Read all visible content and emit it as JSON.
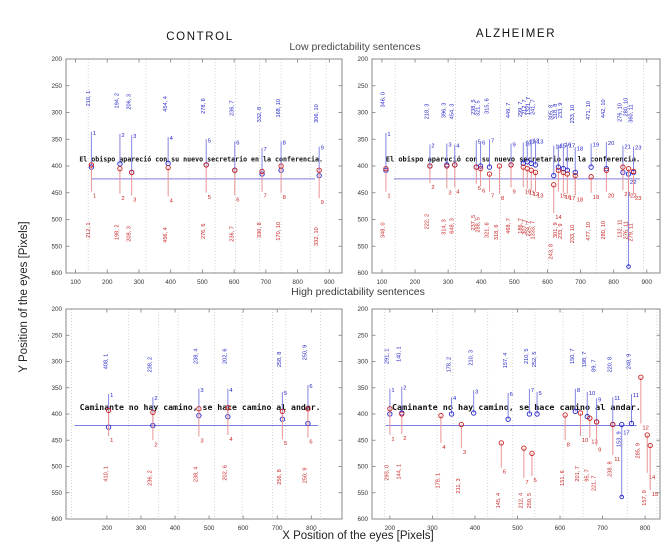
{
  "figure": {
    "titles": {
      "left_col": "CONTROL",
      "right_col": "ALZHEIMER",
      "top_row": "Low predictability sentences",
      "bottom_row": "High predictability sentences",
      "x_axis": "X Position of the eyes [Pixels]",
      "y_axis": "Y Position of the eyes [Pixels]"
    },
    "colors": {
      "blue": "#2323c8",
      "blue_stem": "#8585e2",
      "red": "#c82323",
      "red_stem": "#e89494",
      "baseline": "#7d7de0",
      "grid": "#c9c9c9",
      "axis": "#8a8a8a",
      "tick_text": "#333333",
      "sentence": "#111111"
    }
  },
  "chart_data": [
    {
      "id": "control-low",
      "type": "stem",
      "group": "CONTROL",
      "condition": "Low predictability sentences",
      "xlim": [
        70,
        940
      ],
      "ylim": [
        200,
        600
      ],
      "xticks": [
        100,
        200,
        300,
        400,
        500,
        600,
        700,
        800,
        900
      ],
      "yticks": [
        200,
        250,
        300,
        350,
        400,
        450,
        500,
        550,
        600
      ],
      "grid_x": [
        140,
        322,
        458,
        540,
        604,
        680,
        748,
        840,
        890
      ],
      "sentence": {
        "text": "El obispo apareció con su nuevo secretario en la conferencia.",
        "y": 392,
        "x0": 112,
        "x1": 880
      },
      "baseline": {
        "y": 424,
        "x0": 150,
        "x1": 855
      },
      "fixations": [
        {
          "x": 150,
          "n": "1",
          "b": {
            "y0": 402,
            "y1": 336,
            "label": "210, 1"
          },
          "r": {
            "y0": 398,
            "y1": 448,
            "label": "212, 1"
          }
        },
        {
          "x": 240,
          "n": "2",
          "b": {
            "y0": 396,
            "y1": 340,
            "label": "194, 2"
          },
          "r": {
            "y0": 405,
            "y1": 452,
            "label": "198, 2"
          }
        },
        {
          "x": 277,
          "n": "3",
          "b": {
            "y0": 412,
            "y1": 342,
            "label": "206, 3"
          },
          "r": {
            "y0": 412,
            "y1": 455,
            "label": "208, 3"
          }
        },
        {
          "x": 392,
          "n": "4",
          "b": {
            "y0": 395,
            "y1": 346,
            "label": "454, 4"
          },
          "r": {
            "y0": 403,
            "y1": 457,
            "label": "456, 4"
          }
        },
        {
          "x": 512,
          "n": "5",
          "b": {
            "y0": 398,
            "y1": 350,
            "label": "278, 6"
          },
          "r": {
            "y0": 398,
            "y1": 450,
            "label": "276, 6"
          }
        },
        {
          "x": 602,
          "n": "6",
          "b": {
            "y0": 408,
            "y1": 354,
            "label": "236, 7"
          },
          "r": {
            "y0": 408,
            "y1": 455,
            "label": "236, 7"
          }
        },
        {
          "x": 688,
          "n": "7",
          "b": {
            "y0": 415,
            "y1": 366,
            "label": "332, 8"
          },
          "r": {
            "y0": 410,
            "y1": 448,
            "label": "330, 8"
          }
        },
        {
          "x": 748,
          "n": "8",
          "b": {
            "y0": 408,
            "y1": 354,
            "label": "168, 10"
          },
          "r": {
            "y0": 400,
            "y1": 450,
            "label": "170, 10"
          }
        },
        {
          "x": 868,
          "n": "9",
          "b": {
            "y0": 418,
            "y1": 364,
            "label": "306, 10"
          },
          "r": {
            "y0": 408,
            "y1": 460,
            "label": "332, 10"
          }
        }
      ]
    },
    {
      "id": "alzheimer-low",
      "type": "stem",
      "group": "ALZHEIMER",
      "condition": "Low predictability sentences",
      "xlim": [
        70,
        940
      ],
      "ylim": [
        200,
        600
      ],
      "xticks": [
        100,
        200,
        300,
        400,
        500,
        600,
        700,
        800,
        900
      ],
      "yticks": [
        200,
        250,
        300,
        350,
        400,
        450,
        500,
        550,
        600
      ],
      "grid_x": [
        140,
        322,
        458,
        540,
        604,
        680,
        748,
        840,
        890
      ],
      "sentence": {
        "text": "El obispo apareció con su nuevo secretario en la conferencia.",
        "y": 392,
        "x0": 112,
        "x1": 880
      },
      "baseline": {
        "y": 424,
        "x0": 136,
        "x1": 880
      },
      "fixations": [
        {
          "x": 112,
          "n": "1",
          "b": {
            "y0": 408,
            "y1": 338,
            "label": "346, 0"
          },
          "r": {
            "y0": 405,
            "y1": 448,
            "label": "348, 0"
          }
        },
        {
          "x": 245,
          "n": "2",
          "b": {
            "y0": 400,
            "y1": 360,
            "label": "218, 3"
          },
          "r": {
            "y0": 400,
            "y1": 432,
            "label": "222, 2"
          }
        },
        {
          "x": 296,
          "n": "3",
          "b": {
            "y0": 398,
            "y1": 358,
            "label": "396, 3"
          },
          "r": {
            "y0": 400,
            "y1": 442,
            "label": "314, 3"
          }
        },
        {
          "x": 320,
          "n": "4",
          "b": {
            "y0": 398,
            "y1": 360,
            "label": "454, 3"
          },
          "r": {
            "y0": 398,
            "y1": 440,
            "label": "648, 3"
          }
        },
        {
          "x": 385,
          "n": "5",
          "b": {
            "y0": 402,
            "y1": 352,
            "label": "238, 5"
          },
          "r": {
            "y0": 402,
            "y1": 434,
            "label": "237, 5"
          }
        },
        {
          "x": 398,
          "n": "6",
          "b": {
            "y0": 400,
            "y1": 354,
            "label": "321, 5"
          },
          "r": {
            "y0": 405,
            "y1": 438,
            "label": "288, 5"
          }
        },
        {
          "x": 425,
          "n": "7",
          "b": {
            "y0": 402,
            "y1": 350,
            "label": "315, 6"
          },
          "r": {
            "y0": 415,
            "y1": 448,
            "label": "321, 6"
          }
        },
        {
          "x": 455,
          "n": "8",
          "r": {
            "y0": 400,
            "y1": 452,
            "label": "318, 6"
          }
        },
        {
          "x": 490,
          "n": "9",
          "b": {
            "y0": 398,
            "y1": 358,
            "label": "449, 7"
          },
          "r": {
            "y0": 398,
            "y1": 440,
            "label": "468, 7"
          }
        },
        {
          "x": 527,
          "n": "10",
          "b": {
            "y0": 395,
            "y1": 356,
            "label": "299, 7"
          },
          "r": {
            "y0": 402,
            "y1": 440,
            "label": "186, 7"
          }
        },
        {
          "x": 539,
          "n": "11",
          "b": {
            "y0": 392,
            "y1": 352,
            "label": "212, 7"
          },
          "r": {
            "y0": 405,
            "y1": 442,
            "label": "307, 7"
          }
        },
        {
          "x": 551,
          "n": "12",
          "b": {
            "y0": 395,
            "y1": 350,
            "label": "1321, 7"
          },
          "r": {
            "y0": 408,
            "y1": 445,
            "label": "224, 7"
          }
        },
        {
          "x": 564,
          "n": "13",
          "b": {
            "y0": 398,
            "y1": 352,
            "label": "241, 7"
          },
          "r": {
            "y0": 412,
            "y1": 448,
            "label": "1333, 7"
          }
        },
        {
          "x": 619,
          "n": "14",
          "b": {
            "y0": 418,
            "y1": 362,
            "label": "305, 8"
          },
          "r": {
            "y0": 435,
            "y1": 488,
            "label": "243, 8"
          }
        },
        {
          "x": 633,
          "n": "15",
          "b": {
            "y0": 402,
            "y1": 360,
            "label": "318, 8"
          },
          "r": {
            "y0": 408,
            "y1": 448,
            "label": "301, 9"
          }
        },
        {
          "x": 648,
          "n": "16",
          "b": {
            "y0": 405,
            "y1": 358,
            "label": "233, 9"
          },
          "r": {
            "y0": 412,
            "y1": 450,
            "label": "233, 9"
          }
        },
        {
          "x": 660,
          "n": "17",
          "b": {
            "y0": 408,
            "y1": 360,
            "label": ""
          },
          "r": {
            "y0": 415,
            "y1": 452,
            "label": ""
          }
        },
        {
          "x": 684,
          "n": "18",
          "b": {
            "y0": 412,
            "y1": 365,
            "label": "233, 10"
          },
          "r": {
            "y0": 418,
            "y1": 455,
            "label": "233, 10"
          }
        },
        {
          "x": 732,
          "n": "19",
          "b": {
            "y0": 402,
            "y1": 358,
            "label": "471, 10"
          },
          "r": {
            "y0": 420,
            "y1": 450,
            "label": "477, 10"
          }
        },
        {
          "x": 778,
          "n": "20",
          "b": {
            "y0": 405,
            "y1": 355,
            "label": "442, 10"
          },
          "r": {
            "y0": 408,
            "y1": 448,
            "label": "280, 10"
          }
        },
        {
          "x": 828,
          "n": "21",
          "b": {
            "y0": 412,
            "y1": 362,
            "label": "276, 10"
          },
          "r": {
            "y0": 402,
            "y1": 445,
            "label": "132, 11"
          }
        },
        {
          "x": 845,
          "n": "22",
          "b": {
            "y0": 415,
            "y1": 588,
            "ly": 290,
            "label": "280, 10"
          },
          "r": {
            "y0": 405,
            "y1": 448,
            "label": "276, 11"
          }
        },
        {
          "x": 860,
          "n": "23",
          "b": {
            "y0": 412,
            "y1": 364,
            "label": "360, 11"
          },
          "r": {
            "y0": 410,
            "y1": 452,
            "label": "279, 11"
          }
        }
      ]
    },
    {
      "id": "control-high",
      "type": "stem",
      "group": "CONTROL",
      "condition": "High predictability sentences",
      "xlim": [
        80,
        890
      ],
      "ylim": [
        200,
        600
      ],
      "xticks": [
        200,
        300,
        400,
        500,
        600,
        700,
        800
      ],
      "yticks": [
        200,
        250,
        300,
        350,
        400,
        450,
        500,
        550,
        600
      ],
      "grid_x": [
        96,
        263,
        352,
        409,
        516,
        597,
        686,
        725,
        827
      ],
      "sentence": {
        "text": "Caminante no hay camino, se hace camino al andar.",
        "y": 392,
        "x0": 120,
        "x1": 827
      },
      "baseline": {
        "y": 422,
        "x0": 105,
        "x1": 820
      },
      "fixations": [
        {
          "x": 205,
          "n": "1",
          "b": {
            "y0": 425,
            "y1": 362,
            "label": "408, 1"
          },
          "r": {
            "y0": 393,
            "y1": 442,
            "label": "410, 1"
          }
        },
        {
          "x": 335,
          "n": "2",
          "b": {
            "y0": 422,
            "y1": 368,
            "label": "238, 2"
          },
          "r": {
            "y0": 397,
            "y1": 450,
            "label": "236, 2"
          }
        },
        {
          "x": 470,
          "n": "3",
          "b": {
            "y0": 403,
            "y1": 352,
            "label": "238, 4"
          },
          "r": {
            "y0": 390,
            "y1": 443,
            "label": "238, 4"
          }
        },
        {
          "x": 555,
          "n": "4",
          "b": {
            "y0": 405,
            "y1": 352,
            "label": "202, 6"
          },
          "r": {
            "y0": 388,
            "y1": 440,
            "label": "202, 6"
          }
        },
        {
          "x": 715,
          "n": "5",
          "b": {
            "y0": 410,
            "y1": 358,
            "label": "258, 8"
          },
          "r": {
            "y0": 395,
            "y1": 448,
            "label": "256, 8"
          }
        },
        {
          "x": 790,
          "n": "6",
          "b": {
            "y0": 418,
            "y1": 345,
            "label": "250, 9"
          },
          "r": {
            "y0": 390,
            "y1": 445,
            "label": "250, 9"
          }
        }
      ]
    },
    {
      "id": "alzheimer-high",
      "type": "stem",
      "group": "ALZHEIMER",
      "condition": "High predictability sentences",
      "xlim": [
        158,
        835
      ],
      "ylim": [
        200,
        600
      ],
      "xticks": [
        200,
        300,
        400,
        500,
        600,
        700,
        800
      ],
      "yticks": [
        200,
        250,
        300,
        350,
        400,
        450,
        500,
        550,
        600
      ],
      "grid_x": [
        188,
        311,
        348,
        430,
        489,
        541,
        607,
        654,
        758,
        828
      ],
      "sentence": {
        "text": "Caminante no hay camino, se hace camino al andar.",
        "y": 392,
        "x0": 205,
        "x1": 790
      },
      "baseline": {
        "y": 422,
        "x0": 190,
        "x1": 780
      },
      "fixations": [
        {
          "x": 200,
          "n": "1",
          "b": {
            "y0": 400,
            "y1": 352,
            "label": "291, 1"
          },
          "r": {
            "y0": 390,
            "y1": 440,
            "label": "293, 0"
          }
        },
        {
          "x": 228,
          "n": "2",
          "b": {
            "y0": 398,
            "y1": 348,
            "label": "140, 1"
          },
          "r": {
            "y0": 400,
            "y1": 438,
            "label": "144, 1"
          }
        },
        {
          "x": 320,
          "n": "4",
          "r": {
            "y0": 403,
            "y1": 455,
            "label": "178, 1"
          }
        },
        {
          "x": 345,
          "n": "4",
          "b": {
            "y0": 400,
            "y1": 368,
            "label": "178, 2"
          }
        },
        {
          "x": 368,
          "n": "3",
          "r": {
            "y0": 420,
            "y1": 465,
            "label": "211, 3"
          }
        },
        {
          "x": 397,
          "n": "3",
          "b": {
            "y0": 398,
            "y1": 355,
            "label": "210, 3"
          }
        },
        {
          "x": 462,
          "n": "6",
          "r": {
            "y0": 455,
            "y1": 502,
            "label": "145, 4"
          }
        },
        {
          "x": 478,
          "n": "6",
          "b": {
            "y0": 410,
            "y1": 360,
            "label": "157, 4"
          }
        },
        {
          "x": 515,
          "n": "7",
          "r": {
            "y0": 465,
            "y1": 522,
            "label": "212, 4"
          }
        },
        {
          "x": 528,
          "n": "7",
          "b": {
            "y0": 400,
            "y1": 352,
            "label": "210, 5"
          }
        },
        {
          "x": 534,
          "n": "5",
          "r": {
            "y0": 475,
            "y1": 518,
            "label": "250, 5"
          }
        },
        {
          "x": 546,
          "n": "5",
          "b": {
            "y0": 400,
            "y1": 358,
            "label": "252, 5"
          }
        },
        {
          "x": 612,
          "n": "8",
          "r": {
            "y0": 402,
            "y1": 450,
            "label": "151, 6"
          }
        },
        {
          "x": 636,
          "n": "8",
          "b": {
            "y0": 395,
            "y1": 352,
            "label": "150, 7"
          }
        },
        {
          "x": 648,
          "n": "10",
          "r": {
            "y0": 398,
            "y1": 442,
            "label": "201, 7"
          }
        },
        {
          "x": 664,
          "n": "10",
          "b": {
            "y0": 405,
            "y1": 358,
            "label": "198, 7"
          }
        },
        {
          "x": 670,
          "n": "13",
          "r": {
            "y0": 408,
            "y1": 445,
            "label": "95, 7"
          }
        },
        {
          "x": 686,
          "n": "9",
          "b": {
            "y0": 415,
            "y1": 370,
            "label": "89, 7"
          },
          "r": {
            "y0": 415,
            "y1": 460,
            "label": "221, 7"
          }
        },
        {
          "x": 724,
          "n": "11",
          "b": {
            "y0": 420,
            "y1": 368,
            "label": "220, 8"
          },
          "r": {
            "y0": 420,
            "y1": 478,
            "ly": 505,
            "label": "238, 8"
          }
        },
        {
          "x": 745,
          "n": "17",
          "b": {
            "y0": 420,
            "y1": 558,
            "ly": 448,
            "label": "153, 9"
          }
        },
        {
          "x": 768,
          "n": "11",
          "b": {
            "y0": 418,
            "y1": 362,
            "label": "248, 9"
          }
        },
        {
          "x": 790,
          "n": "12",
          "r": {
            "y0": 330,
            "y1": 418,
            "ly": 470,
            "label": "285, 9"
          }
        },
        {
          "x": 805,
          "n": "14",
          "r": {
            "y0": 440,
            "y1": 512,
            "ly": 560,
            "label": "157, 9"
          }
        },
        {
          "x": 812,
          "n": "15",
          "r": {
            "y0": 460,
            "y1": 545,
            "label": ""
          }
        }
      ]
    }
  ]
}
